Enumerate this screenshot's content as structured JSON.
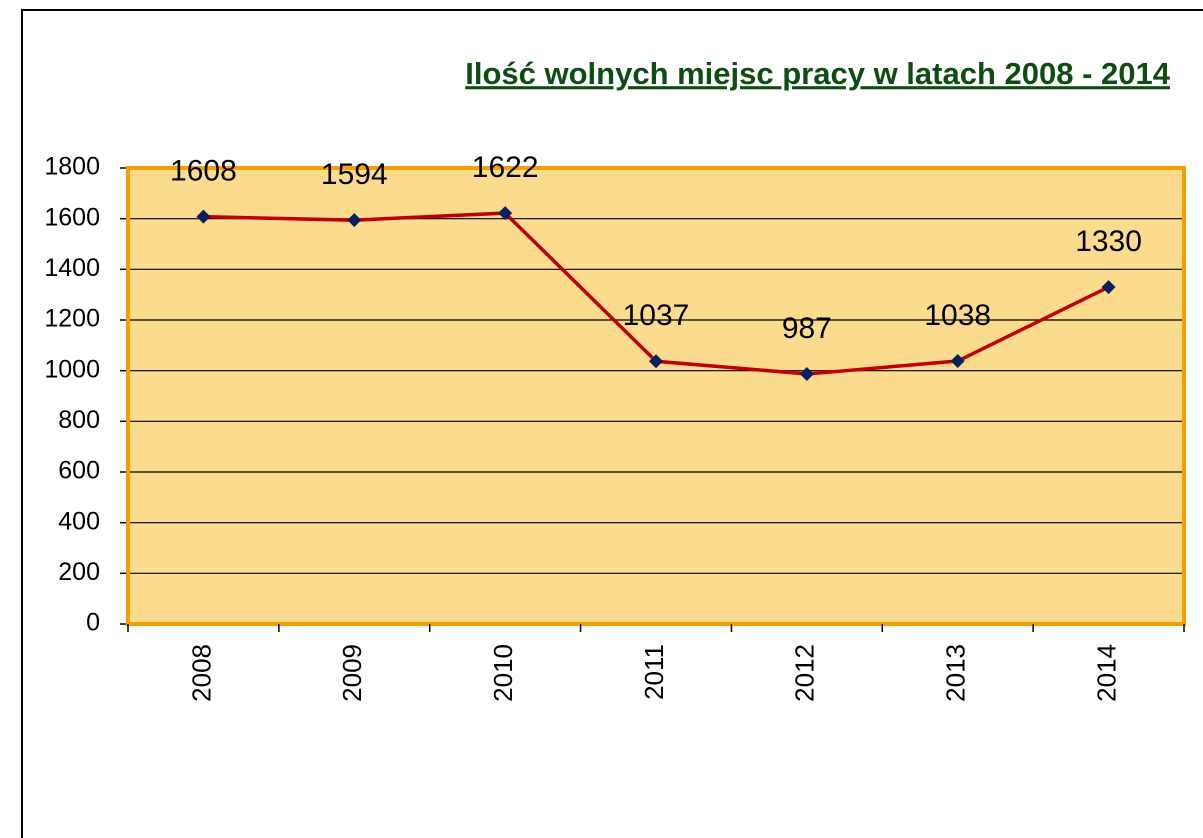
{
  "chart_data": {
    "type": "line",
    "title": "Ilość wolnych miejsc pracy w latach 2008 - 2014",
    "categories": [
      "2008",
      "2009",
      "2010",
      "2011",
      "2012",
      "2013",
      "2014"
    ],
    "values": [
      1608,
      1594,
      1622,
      1037,
      987,
      1038,
      1330
    ],
    "color": "#c00000",
    "marker_color": "#0a1f5c",
    "background": "#fbdc8f",
    "border_color": "#f5a000",
    "ylim": [
      0,
      1800
    ],
    "yticks": [
      0,
      200,
      400,
      600,
      800,
      1000,
      1200,
      1400,
      1600,
      1800
    ],
    "grid": true
  }
}
